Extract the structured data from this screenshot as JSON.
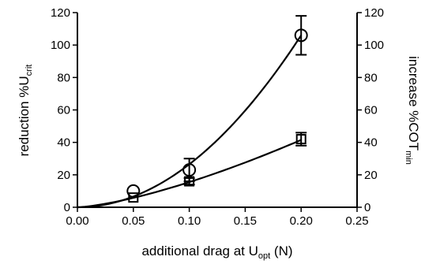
{
  "chart_data": {
    "type": "scatter",
    "x_ticks": [
      "0.00",
      "0.05",
      "0.10",
      "0.15",
      "0.20",
      "0.25"
    ],
    "y_left_ticks": [
      "0",
      "20",
      "40",
      "60",
      "80",
      "100",
      "120"
    ],
    "y_right_ticks": [
      "0",
      "20",
      "40",
      "60",
      "80",
      "100",
      "120"
    ],
    "xlabel_main": "additional drag at U",
    "xlabel_sub": "opt",
    "xlabel_suffix": " (N)",
    "ylabel_left_main": "reduction %U",
    "ylabel_left_sub": "crit",
    "ylabel_right_main": "increase %COT",
    "ylabel_right_sub": "min",
    "xlim": [
      0,
      0.25
    ],
    "ylim": [
      0,
      120
    ],
    "grid": false,
    "series": [
      {
        "marker": "circle",
        "x": [
          0.05,
          0.1,
          0.2
        ],
        "y": [
          10,
          23,
          106
        ],
        "yerr": [
          0,
          7,
          12
        ],
        "fit": {
          "type": "power",
          "a": 2650,
          "b": 2
        }
      },
      {
        "marker": "square",
        "x": [
          0.05,
          0.1,
          0.2
        ],
        "y": [
          6,
          16,
          42
        ],
        "yerr": [
          0,
          2,
          4
        ],
        "fit": {
          "type": "power",
          "a": 408,
          "b": 1.42
        }
      }
    ]
  }
}
